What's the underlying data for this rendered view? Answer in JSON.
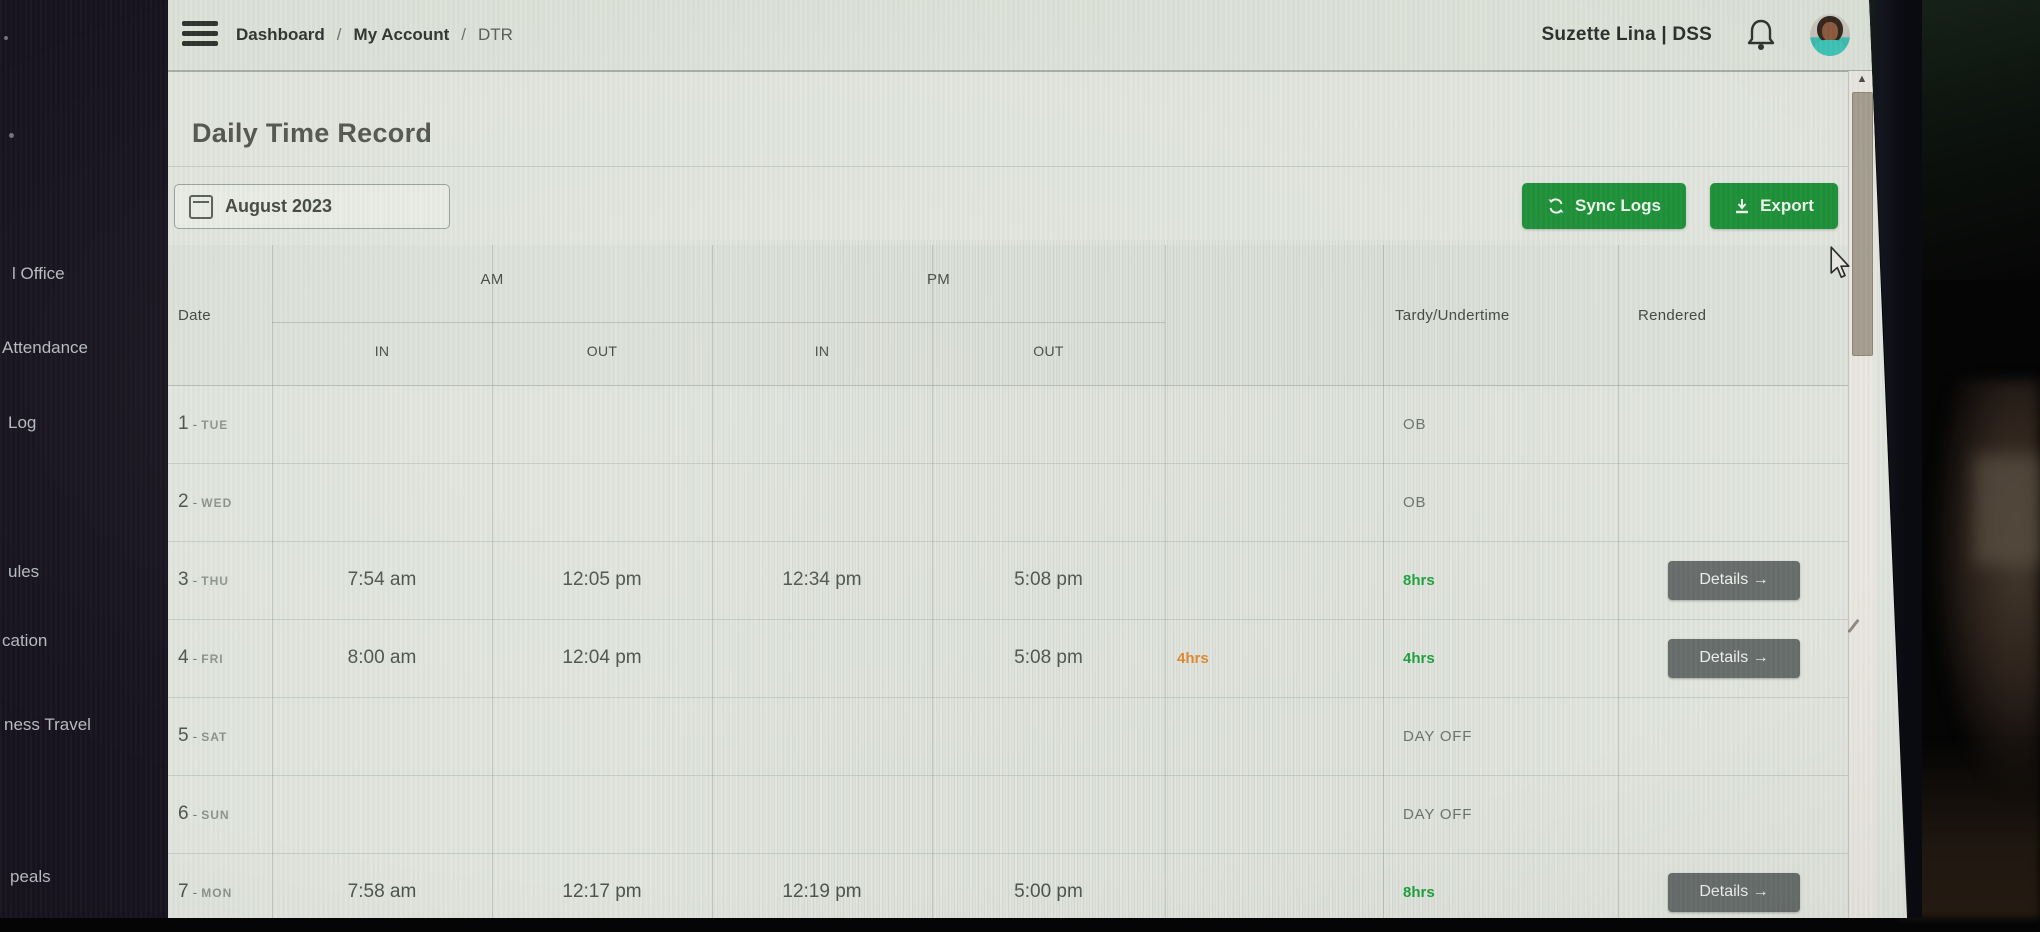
{
  "sidebar": {
    "items": [
      {
        "label": "l Office"
      },
      {
        "label": "Attendance"
      },
      {
        "label": "Log"
      },
      {
        "label": "ules"
      },
      {
        "label": "cation"
      },
      {
        "label": "ness Travel"
      },
      {
        "label": "peals"
      }
    ]
  },
  "topbar": {
    "breadcrumb": {
      "items": [
        "Dashboard",
        "My Account",
        "DTR"
      ],
      "separator": "/"
    },
    "user": "Suzette Lina | DSS"
  },
  "page": {
    "title": "Daily Time Record"
  },
  "toolbar": {
    "month": "August 2023",
    "sync": "Sync Logs",
    "export": "Export"
  },
  "table": {
    "header": {
      "date": "Date",
      "am": "AM",
      "pm": "PM",
      "in": "IN",
      "out": "OUT",
      "tardy": "Tardy/Undertime",
      "rendered": "Rendered"
    },
    "day_separator": "-",
    "details_label": "Details →",
    "rows": [
      {
        "day": "1",
        "dow": "TUE",
        "am_in": "",
        "am_out": "",
        "pm_in": "",
        "pm_out": "",
        "tardy": "",
        "rendered": "OB",
        "rendered_style": "muted",
        "has_details": false
      },
      {
        "day": "2",
        "dow": "WED",
        "am_in": "",
        "am_out": "",
        "pm_in": "",
        "pm_out": "",
        "tardy": "",
        "rendered": "OB",
        "rendered_style": "muted",
        "has_details": false
      },
      {
        "day": "3",
        "dow": "THU",
        "am_in": "7:54 am",
        "am_out": "12:05 pm",
        "pm_in": "12:34 pm",
        "pm_out": "5:08 pm",
        "tardy": "",
        "rendered": "8hrs",
        "rendered_style": "green",
        "has_details": true
      },
      {
        "day": "4",
        "dow": "FRI",
        "am_in": "8:00 am",
        "am_out": "12:04 pm",
        "pm_in": "",
        "pm_out": "5:08 pm",
        "tardy": "4hrs",
        "rendered": "4hrs",
        "rendered_style": "green",
        "has_details": true
      },
      {
        "day": "5",
        "dow": "SAT",
        "am_in": "",
        "am_out": "",
        "pm_in": "",
        "pm_out": "",
        "tardy": "",
        "rendered": "DAY OFF",
        "rendered_style": "muted",
        "has_details": false
      },
      {
        "day": "6",
        "dow": "SUN",
        "am_in": "",
        "am_out": "",
        "pm_in": "",
        "pm_out": "",
        "tardy": "",
        "rendered": "DAY OFF",
        "rendered_style": "muted",
        "has_details": false
      },
      {
        "day": "7",
        "dow": "MON",
        "am_in": "7:58 am",
        "am_out": "12:17 pm",
        "pm_in": "12:19 pm",
        "pm_out": "5:00 pm",
        "tardy": "",
        "rendered": "8hrs",
        "rendered_style": "green",
        "has_details": true
      }
    ]
  },
  "icons": {
    "scroll_up": "▲",
    "caret_down": "▼"
  },
  "colors": {
    "accent_green": "#1e9038",
    "hours_green": "#1da23e",
    "tardy_orange": "#e0892f",
    "details_gray": "#686d6c",
    "sidebar_dark": "#16121e",
    "content_bg": "#e1e5de"
  }
}
